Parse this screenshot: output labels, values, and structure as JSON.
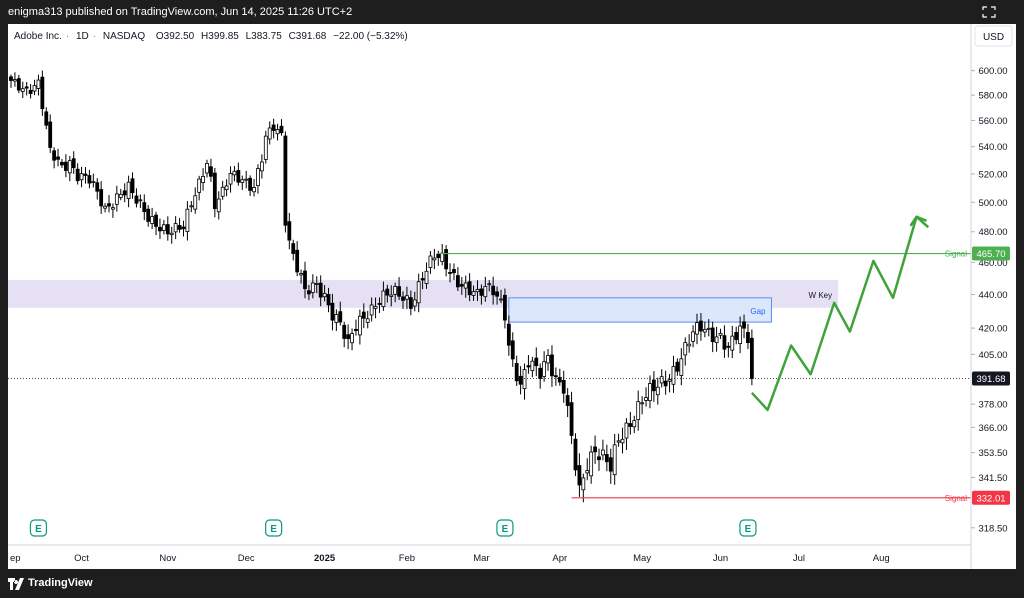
{
  "header": {
    "published_text": "enigma313 published on TradingView.com, Jun 14, 2025 11:26 UTC+2"
  },
  "legend": {
    "name": "Adobe Inc.",
    "interval": "1D",
    "exchange": "NASDAQ",
    "open": "O392.50",
    "high": "H399.85",
    "low": "L383.75",
    "close": "C391.68",
    "change": "−22.00 (−5.32%)"
  },
  "currency": "USD",
  "footer": {
    "brand": "TradingView"
  },
  "colors": {
    "up": "#ffffff",
    "down": "#000000",
    "signal_high": "#4caf50",
    "signal_low": "#f23645",
    "zone": "#e6e0f5",
    "gap": "#dbe7fb",
    "gap_border": "#5b8def",
    "projection": "#3fa33a"
  },
  "chart_data": {
    "type": "candlestick",
    "ylim": [
      311,
      614
    ],
    "y_ticks": [
      {
        "v": 600,
        "label": "600.00"
      },
      {
        "v": 580,
        "label": "580.00"
      },
      {
        "v": 560,
        "label": "560.00"
      },
      {
        "v": 540,
        "label": "540.00"
      },
      {
        "v": 520,
        "label": "520.00"
      },
      {
        "v": 500,
        "label": "500.00"
      },
      {
        "v": 480,
        "label": "480.00"
      },
      {
        "v": 460,
        "label": "460.00"
      },
      {
        "v": 440,
        "label": "440.00"
      },
      {
        "v": 420,
        "label": "420.00"
      },
      {
        "v": 405,
        "label": "405.00"
      },
      {
        "v": 378,
        "label": "378.00"
      },
      {
        "v": 366,
        "label": "366.00"
      },
      {
        "v": 353.5,
        "label": "353.50"
      },
      {
        "v": 341.5,
        "label": "341.50"
      },
      {
        "v": 318.5,
        "label": "318.50"
      }
    ],
    "x_ticks": [
      {
        "label": "ep",
        "t": -1,
        "bold": false
      },
      {
        "label": "Oct",
        "t": 18,
        "bold": false
      },
      {
        "label": "Nov",
        "t": 40,
        "bold": false
      },
      {
        "label": "Dec",
        "t": 60,
        "bold": false
      },
      {
        "label": "2025",
        "t": 80,
        "bold": true
      },
      {
        "label": "Feb",
        "t": 101,
        "bold": false
      },
      {
        "label": "Mar",
        "t": 120,
        "bold": false
      },
      {
        "label": "Apr",
        "t": 140,
        "bold": false
      },
      {
        "label": "May",
        "t": 161,
        "bold": false
      },
      {
        "label": "Jun",
        "t": 181,
        "bold": false
      },
      {
        "label": "Jul",
        "t": 201,
        "bold": false
      },
      {
        "label": "Aug",
        "t": 222,
        "bold": false
      }
    ],
    "last_price": {
      "value": 391.68,
      "label": "391.68"
    },
    "signals": [
      {
        "value": 465.7,
        "label": "465.70",
        "text": "Signal",
        "role": "high",
        "t_start": 109
      },
      {
        "value": 332.01,
        "label": "332.01",
        "text": "Signal",
        "role": "low",
        "t_start": 143
      }
    ],
    "zones": [
      {
        "name": "w-key",
        "text": "W Key",
        "y_low": 432,
        "y_high": 449,
        "t_start": -1,
        "t_end": 211
      },
      {
        "name": "gap",
        "text": "Gap",
        "y_low": 423.5,
        "y_high": 438,
        "t_start": 127,
        "t_end": 194
      }
    ],
    "earnings_markers": [
      7,
      67,
      126,
      188
    ],
    "projection": [
      {
        "t": 189,
        "v": 384
      },
      {
        "t": 193,
        "v": 375
      },
      {
        "t": 199,
        "v": 410
      },
      {
        "t": 204,
        "v": 394
      },
      {
        "t": 210,
        "v": 435
      },
      {
        "t": 214,
        "v": 418
      },
      {
        "t": 220,
        "v": 461
      },
      {
        "t": 225,
        "v": 438
      },
      {
        "t": 231,
        "v": 490
      },
      {
        "t": 234,
        "v": 483
      }
    ],
    "anchors": [
      [
        0,
        590
      ],
      [
        4,
        585
      ],
      [
        7,
        590
      ],
      [
        10,
        535
      ],
      [
        13,
        525
      ],
      [
        15,
        530
      ],
      [
        17,
        520
      ],
      [
        20,
        515
      ],
      [
        24,
        495
      ],
      [
        27,
        505
      ],
      [
        30,
        510
      ],
      [
        32,
        500
      ],
      [
        35,
        490
      ],
      [
        38,
        485
      ],
      [
        40,
        480
      ],
      [
        42,
        480
      ],
      [
        44,
        482
      ],
      [
        46,
        500
      ],
      [
        48,
        515
      ],
      [
        50,
        530
      ],
      [
        51,
        515
      ],
      [
        52,
        497
      ],
      [
        54,
        505
      ],
      [
        56,
        520
      ],
      [
        59,
        518
      ],
      [
        62,
        510
      ],
      [
        64,
        530
      ],
      [
        65,
        545
      ],
      [
        67,
        555
      ],
      [
        69,
        550
      ],
      [
        70,
        490
      ],
      [
        71,
        475
      ],
      [
        72,
        465
      ],
      [
        74,
        450
      ],
      [
        75,
        440
      ],
      [
        78,
        445
      ],
      [
        80,
        440
      ],
      [
        82,
        430
      ],
      [
        84,
        423
      ],
      [
        86,
        409
      ],
      [
        88,
        420
      ],
      [
        91,
        430
      ],
      [
        94,
        438
      ],
      [
        97,
        440
      ],
      [
        100,
        438
      ],
      [
        102,
        435
      ],
      [
        105,
        452
      ],
      [
        108,
        463
      ],
      [
        110,
        461
      ],
      [
        113,
        452
      ],
      [
        116,
        445
      ],
      [
        119,
        438
      ],
      [
        121,
        443
      ],
      [
        123,
        444
      ],
      [
        124,
        440
      ],
      [
        125,
        437
      ],
      [
        126,
        430
      ],
      [
        127,
        410
      ],
      [
        128,
        400
      ],
      [
        130,
        385
      ],
      [
        132,
        400
      ],
      [
        135,
        397
      ],
      [
        137,
        405
      ],
      [
        139,
        390
      ],
      [
        141,
        385
      ],
      [
        143,
        360
      ],
      [
        145,
        336
      ],
      [
        147,
        350
      ],
      [
        149,
        355
      ],
      [
        151,
        350
      ],
      [
        153,
        345
      ],
      [
        155,
        360
      ],
      [
        158,
        370
      ],
      [
        161,
        380
      ],
      [
        164,
        385
      ],
      [
        167,
        391
      ],
      [
        170,
        400
      ],
      [
        172,
        408
      ],
      [
        174,
        416
      ],
      [
        176,
        420
      ],
      [
        178,
        418
      ],
      [
        181,
        416
      ],
      [
        183,
        408
      ],
      [
        186,
        418
      ],
      [
        188,
        415
      ],
      [
        189,
        390
      ]
    ]
  }
}
